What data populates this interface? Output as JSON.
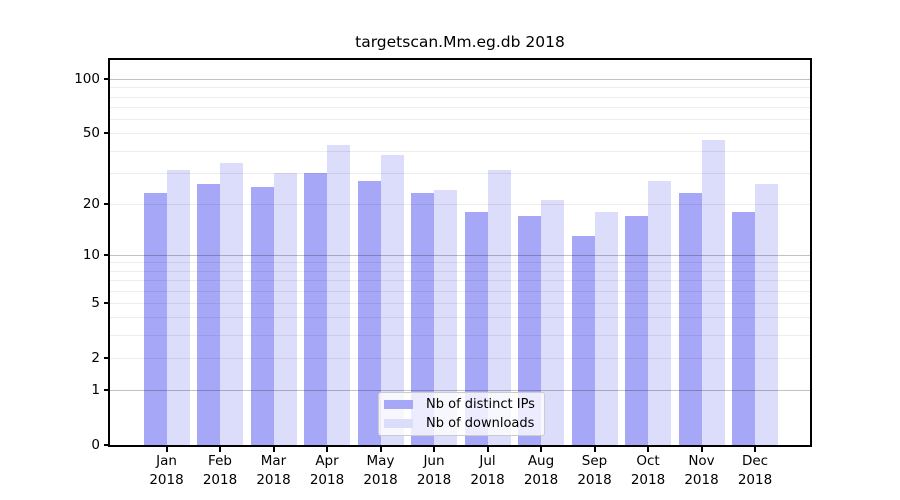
{
  "title": "targetscan.Mm.eg.db 2018",
  "chart_data": {
    "type": "bar",
    "title": "targetscan.Mm.eg.db 2018",
    "categories": [
      "Jan",
      "Feb",
      "Mar",
      "Apr",
      "May",
      "Jun",
      "Jul",
      "Aug",
      "Sep",
      "Oct",
      "Nov",
      "Dec"
    ],
    "x_label_year": "2018",
    "series": [
      {
        "name": "Nb of distinct IPs",
        "color": "#a7a7f8",
        "values": [
          23,
          26,
          25,
          30,
          27,
          23,
          18,
          17,
          13,
          17,
          23,
          18
        ]
      },
      {
        "name": "Nb of downloads",
        "color": "#dcdcfb",
        "values": [
          31,
          34,
          30,
          43,
          38,
          24,
          31,
          21,
          18,
          27,
          46,
          26
        ]
      }
    ],
    "y_axis": {
      "scale": "log10(1+x)",
      "tick_values": [
        0,
        1,
        2,
        5,
        10,
        20,
        50,
        100
      ],
      "major_gridlines": [
        1,
        10,
        100
      ],
      "minor_gridlines": [
        2,
        3,
        4,
        5,
        6,
        7,
        8,
        9,
        20,
        30,
        40,
        50,
        60,
        70,
        80,
        90
      ]
    },
    "legend": {
      "items": [
        "Nb of distinct IPs",
        "Nb of downloads"
      ],
      "position": "bottom-center"
    },
    "grid": true
  },
  "colors": {
    "ips_bar": "#a7a7f8",
    "downloads_bar": "#dcdcfb",
    "frame": "#000000",
    "major_grid": "rgba(0,0,0,0.24)",
    "minor_grid": "rgba(0,0,0,0.07)"
  }
}
